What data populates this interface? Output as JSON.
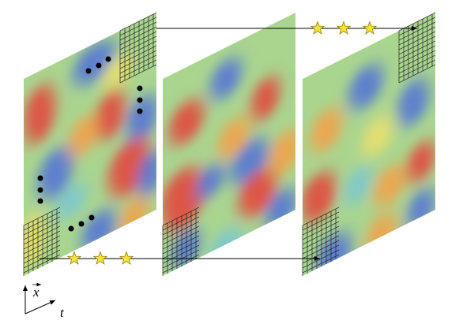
{
  "axes": {
    "x_label": "x",
    "t_label": "t"
  }
}
